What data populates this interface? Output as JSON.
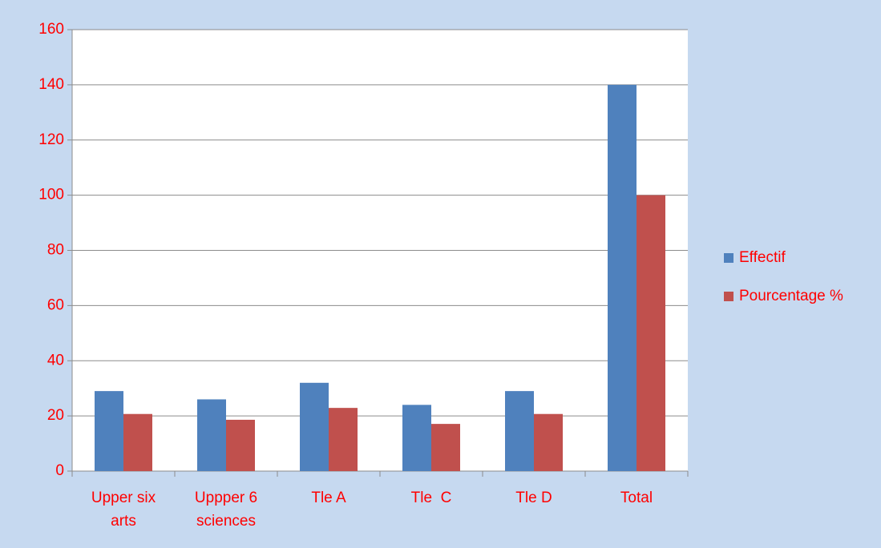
{
  "chart_data": {
    "type": "bar",
    "categories": [
      "Upper six arts",
      "Uppper 6 sciences",
      "Tle A",
      "Tle  C",
      "Tle D",
      "Total"
    ],
    "series": [
      {
        "name": "Effectif",
        "color": "#4f81bd",
        "values": [
          29,
          26,
          32,
          24,
          29,
          140
        ]
      },
      {
        "name": "Pourcentage %",
        "color": "#c0504d",
        "values": [
          20.7,
          18.6,
          22.9,
          17.1,
          20.7,
          100
        ]
      }
    ],
    "ylim": [
      0,
      160
    ],
    "yticks": [
      0,
      20,
      40,
      60,
      80,
      100,
      120,
      140,
      160
    ],
    "grid": true,
    "legend": "right",
    "label_color": "#ff0000"
  }
}
